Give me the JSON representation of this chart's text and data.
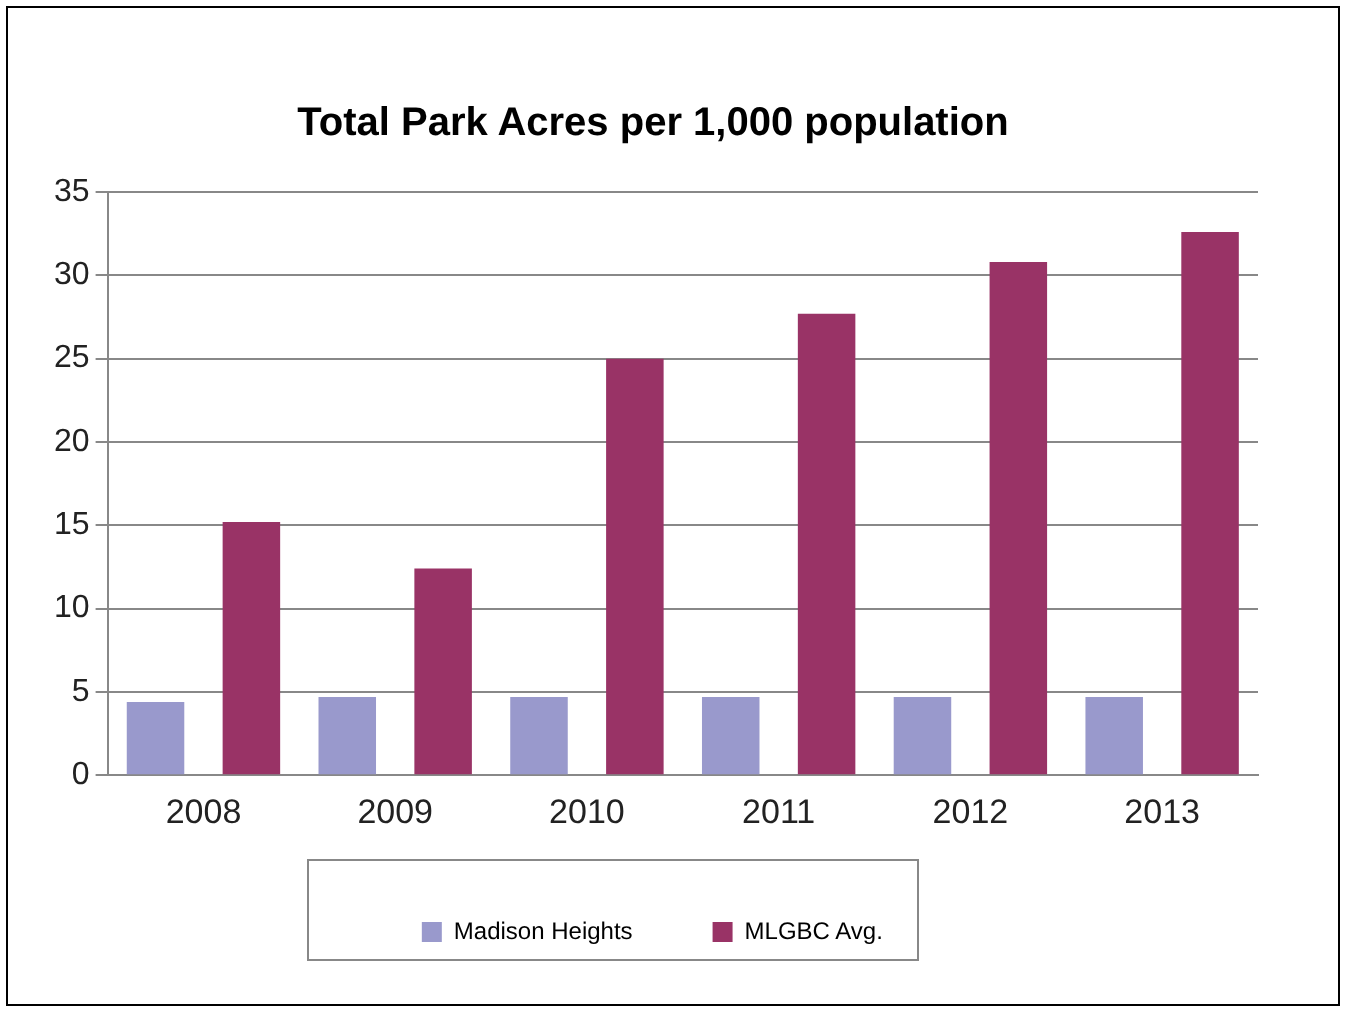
{
  "chart_data": {
    "type": "bar",
    "title": "Total Park Acres per 1,000 population",
    "categories": [
      "2008",
      "2009",
      "2010",
      "2011",
      "2012",
      "2013"
    ],
    "series": [
      {
        "name": "Madison Heights",
        "color": "#9999cc",
        "values": [
          4.4,
          4.7,
          4.7,
          4.7,
          4.7,
          4.7
        ]
      },
      {
        "name": "MLGBC Avg.",
        "color": "#993366",
        "values": [
          15.2,
          12.4,
          25.0,
          27.7,
          30.8,
          32.6
        ]
      }
    ],
    "ylim": [
      0,
      35
    ],
    "yticks": [
      0,
      5,
      10,
      15,
      20,
      25,
      30,
      35
    ],
    "grid": "y",
    "legend": "bottom"
  }
}
